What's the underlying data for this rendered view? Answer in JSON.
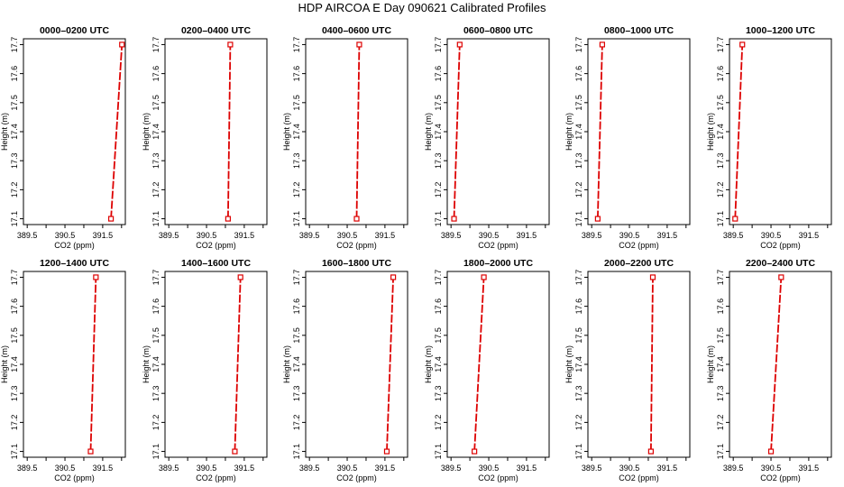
{
  "title": "HDP AIRCOA E  Day 090621  Calibrated Profiles",
  "colors": {
    "series": "#dd0000",
    "axes": "#000000"
  },
  "chart_data": [
    {
      "type": "line",
      "title": "0000–0200 UTC",
      "xlabel": "CO2 (ppm)",
      "ylabel": "Height (m)",
      "xlim": [
        389.4,
        392.1
      ],
      "ylim": [
        17.08,
        17.72
      ],
      "xticks": [
        "389.5",
        "390.5",
        "391.5"
      ],
      "yticks": [
        "17.1",
        "17.2",
        "17.3",
        "17.4",
        "17.5",
        "17.6",
        "17.7"
      ],
      "series": [
        {
          "x": [
            391.72,
            392.01
          ],
          "y": [
            17.1,
            17.7
          ]
        }
      ]
    },
    {
      "type": "line",
      "title": "0200–0400 UTC",
      "xlabel": "CO2 (ppm)",
      "ylabel": "Height (m)",
      "xlim": [
        389.4,
        392.1
      ],
      "ylim": [
        17.08,
        17.72
      ],
      "xticks": [
        "389.5",
        "390.5",
        "391.5"
      ],
      "yticks": [
        "17.1",
        "17.2",
        "17.3",
        "17.4",
        "17.5",
        "17.6",
        "17.7"
      ],
      "series": [
        {
          "x": [
            391.07,
            391.13
          ],
          "y": [
            17.1,
            17.7
          ]
        }
      ]
    },
    {
      "type": "line",
      "title": "0400–0600 UTC",
      "xlabel": "CO2 (ppm)",
      "ylabel": "Height (m)",
      "xlim": [
        389.4,
        392.1
      ],
      "ylim": [
        17.08,
        17.72
      ],
      "xticks": [
        "389.5",
        "390.5",
        "391.5"
      ],
      "yticks": [
        "17.1",
        "17.2",
        "17.3",
        "17.4",
        "17.5",
        "17.6",
        "17.7"
      ],
      "series": [
        {
          "x": [
            390.75,
            390.82
          ],
          "y": [
            17.1,
            17.7
          ]
        }
      ]
    },
    {
      "type": "line",
      "title": "0600–0800 UTC",
      "xlabel": "CO2 (ppm)",
      "ylabel": "Height (m)",
      "xlim": [
        389.4,
        392.1
      ],
      "ylim": [
        17.08,
        17.72
      ],
      "xticks": [
        "389.5",
        "390.5",
        "391.5"
      ],
      "yticks": [
        "17.1",
        "17.2",
        "17.3",
        "17.4",
        "17.5",
        "17.6",
        "17.7"
      ],
      "series": [
        {
          "x": [
            389.58,
            389.73
          ],
          "y": [
            17.1,
            17.7
          ]
        }
      ]
    },
    {
      "type": "line",
      "title": "0800–1000 UTC",
      "xlabel": "CO2 (ppm)",
      "ylabel": "Height (m)",
      "xlim": [
        389.4,
        392.1
      ],
      "ylim": [
        17.08,
        17.72
      ],
      "xticks": [
        "389.5",
        "390.5",
        "391.5"
      ],
      "yticks": [
        "17.1",
        "17.2",
        "17.3",
        "17.4",
        "17.5",
        "17.6",
        "17.7"
      ],
      "series": [
        {
          "x": [
            389.66,
            389.78
          ],
          "y": [
            17.1,
            17.7
          ]
        }
      ]
    },
    {
      "type": "line",
      "title": "1000–1200 UTC",
      "xlabel": "CO2 (ppm)",
      "ylabel": "Height (m)",
      "xlim": [
        389.4,
        392.1
      ],
      "ylim": [
        17.08,
        17.72
      ],
      "xticks": [
        "389.5",
        "390.5",
        "391.5"
      ],
      "yticks": [
        "17.1",
        "17.2",
        "17.3",
        "17.4",
        "17.5",
        "17.6",
        "17.7"
      ],
      "series": [
        {
          "x": [
            389.55,
            389.74
          ],
          "y": [
            17.1,
            17.7
          ]
        }
      ]
    },
    {
      "type": "line",
      "title": "1200–1400 UTC",
      "xlabel": "CO2 (ppm)",
      "ylabel": "Height (m)",
      "xlim": [
        389.4,
        392.1
      ],
      "ylim": [
        17.08,
        17.72
      ],
      "xticks": [
        "389.5",
        "390.5",
        "391.5"
      ],
      "yticks": [
        "17.1",
        "17.2",
        "17.3",
        "17.4",
        "17.5",
        "17.6",
        "17.7"
      ],
      "series": [
        {
          "x": [
            391.18,
            391.32
          ],
          "y": [
            17.1,
            17.7
          ]
        }
      ]
    },
    {
      "type": "line",
      "title": "1400–1600 UTC",
      "xlabel": "CO2 (ppm)",
      "ylabel": "Height (m)",
      "xlim": [
        389.4,
        392.1
      ],
      "ylim": [
        17.08,
        17.72
      ],
      "xticks": [
        "389.5",
        "390.5",
        "391.5"
      ],
      "yticks": [
        "17.1",
        "17.2",
        "17.3",
        "17.4",
        "17.5",
        "17.6",
        "17.7"
      ],
      "series": [
        {
          "x": [
            391.25,
            391.4
          ],
          "y": [
            17.1,
            17.7
          ]
        }
      ]
    },
    {
      "type": "line",
      "title": "1600–1800 UTC",
      "xlabel": "CO2 (ppm)",
      "ylabel": "Height (m)",
      "xlim": [
        389.4,
        392.1
      ],
      "ylim": [
        17.08,
        17.72
      ],
      "xticks": [
        "389.5",
        "390.5",
        "391.5"
      ],
      "yticks": [
        "17.1",
        "17.2",
        "17.3",
        "17.4",
        "17.5",
        "17.6",
        "17.7"
      ],
      "series": [
        {
          "x": [
            391.55,
            391.72
          ],
          "y": [
            17.1,
            17.7
          ]
        }
      ]
    },
    {
      "type": "line",
      "title": "1800–2000 UTC",
      "xlabel": "CO2 (ppm)",
      "ylabel": "Height (m)",
      "xlim": [
        389.4,
        392.1
      ],
      "ylim": [
        17.08,
        17.72
      ],
      "xticks": [
        "389.5",
        "390.5",
        "391.5"
      ],
      "yticks": [
        "17.1",
        "17.2",
        "17.3",
        "17.4",
        "17.5",
        "17.6",
        "17.7"
      ],
      "series": [
        {
          "x": [
            390.12,
            390.37
          ],
          "y": [
            17.1,
            17.7
          ]
        }
      ]
    },
    {
      "type": "line",
      "title": "2000–2200 UTC",
      "xlabel": "CO2 (ppm)",
      "ylabel": "Height (m)",
      "xlim": [
        389.4,
        392.1
      ],
      "ylim": [
        17.08,
        17.72
      ],
      "xticks": [
        "389.5",
        "390.5",
        "391.5"
      ],
      "yticks": [
        "17.1",
        "17.2",
        "17.3",
        "17.4",
        "17.5",
        "17.6",
        "17.7"
      ],
      "series": [
        {
          "x": [
            391.07,
            391.12
          ],
          "y": [
            17.1,
            17.7
          ]
        }
      ]
    },
    {
      "type": "line",
      "title": "2200–2400 UTC",
      "xlabel": "CO2 (ppm)",
      "ylabel": "Height (m)",
      "xlim": [
        389.4,
        392.1
      ],
      "ylim": [
        17.08,
        17.72
      ],
      "xticks": [
        "389.5",
        "390.5",
        "391.5"
      ],
      "yticks": [
        "17.1",
        "17.2",
        "17.3",
        "17.4",
        "17.5",
        "17.6",
        "17.7"
      ],
      "series": [
        {
          "x": [
            390.5,
            390.77
          ],
          "y": [
            17.1,
            17.7
          ]
        }
      ]
    }
  ]
}
